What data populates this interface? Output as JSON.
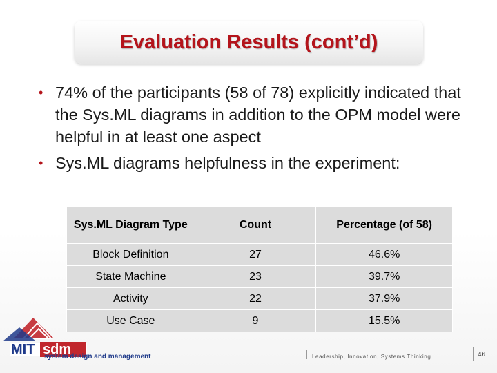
{
  "slide": {
    "title": "Evaluation Results (cont’d)",
    "bullets": [
      "74% of the participants (58 of 78) explicitly indicated that the Sys.ML diagrams in addition to the OPM model were helpful in at least one aspect",
      "Sys.ML diagrams helpfulness in the experiment:"
    ],
    "bullet_glyph": "•"
  },
  "table": {
    "headers": [
      "Sys.ML Diagram Type",
      "Count",
      "Percentage (of 58)"
    ],
    "rows": [
      [
        "Block Definition",
        "27",
        "46.6%"
      ],
      [
        "State Machine",
        "23",
        "39.7%"
      ],
      [
        "Activity",
        "22",
        "37.9%"
      ],
      [
        "Use Case",
        "9",
        "15.5%"
      ]
    ]
  },
  "footer": {
    "logo_text": "MIT sdm",
    "logo_tagline": "system design and management",
    "tagline": "Leadership, Innovation, Systems Thinking",
    "page_number": "46"
  },
  "colors": {
    "title": "#b4141b",
    "logo_red": "#c1272d",
    "logo_blue": "#1f3a8a",
    "table_cell": "#dcdcdc"
  }
}
